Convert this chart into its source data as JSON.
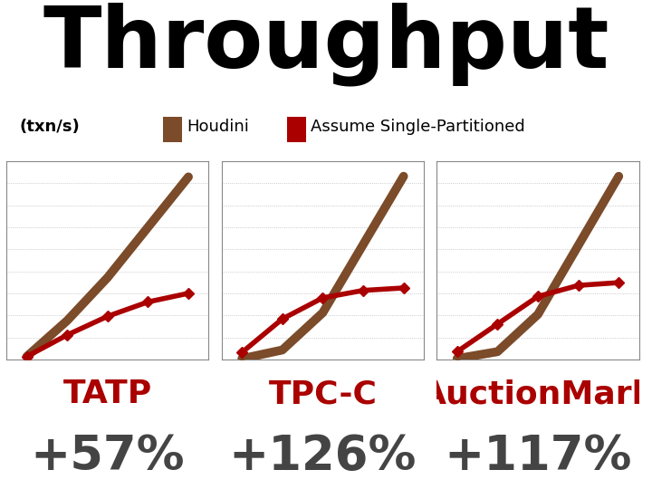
{
  "title": "Throughput",
  "ylabel": "(txn/s)",
  "legend_houdini": "Houdini",
  "legend_assume": "Assume Single-Partitioned",
  "panels": [
    {
      "label": "TATP",
      "pct": "+57%",
      "houdini_y": [
        1.0,
        3.5,
        6.5,
        10.0,
        13.5
      ],
      "assume_y": [
        1.0,
        2.5,
        3.8,
        4.8,
        5.4
      ]
    },
    {
      "label": "TPC-C",
      "pct": "+126%",
      "houdini_y": [
        0.3,
        1.0,
        4.0,
        9.5,
        15.0
      ],
      "assume_y": [
        0.8,
        3.5,
        5.2,
        5.8,
        6.0
      ]
    },
    {
      "label": "AuctionMark",
      "pct": "+117%",
      "houdini_y": [
        0.3,
        0.8,
        3.5,
        8.5,
        13.5
      ],
      "assume_y": [
        0.8,
        2.8,
        4.8,
        5.6,
        5.8
      ]
    }
  ],
  "x": [
    1,
    2,
    3,
    4,
    5
  ],
  "houdini_color": "#7B4B2A",
  "assume_color": "#AA0000",
  "title_fontsize": 68,
  "label_fontsize": 26,
  "pct_fontsize": 38,
  "ylabel_fontsize": 13,
  "legend_fontsize": 13,
  "houdini_lw": 7,
  "assume_lw": 4,
  "panel_label_color": "#AA0000",
  "pct_color": "#444444",
  "background_color": "#FFFFFF",
  "grid_color": "#BBBBBB"
}
